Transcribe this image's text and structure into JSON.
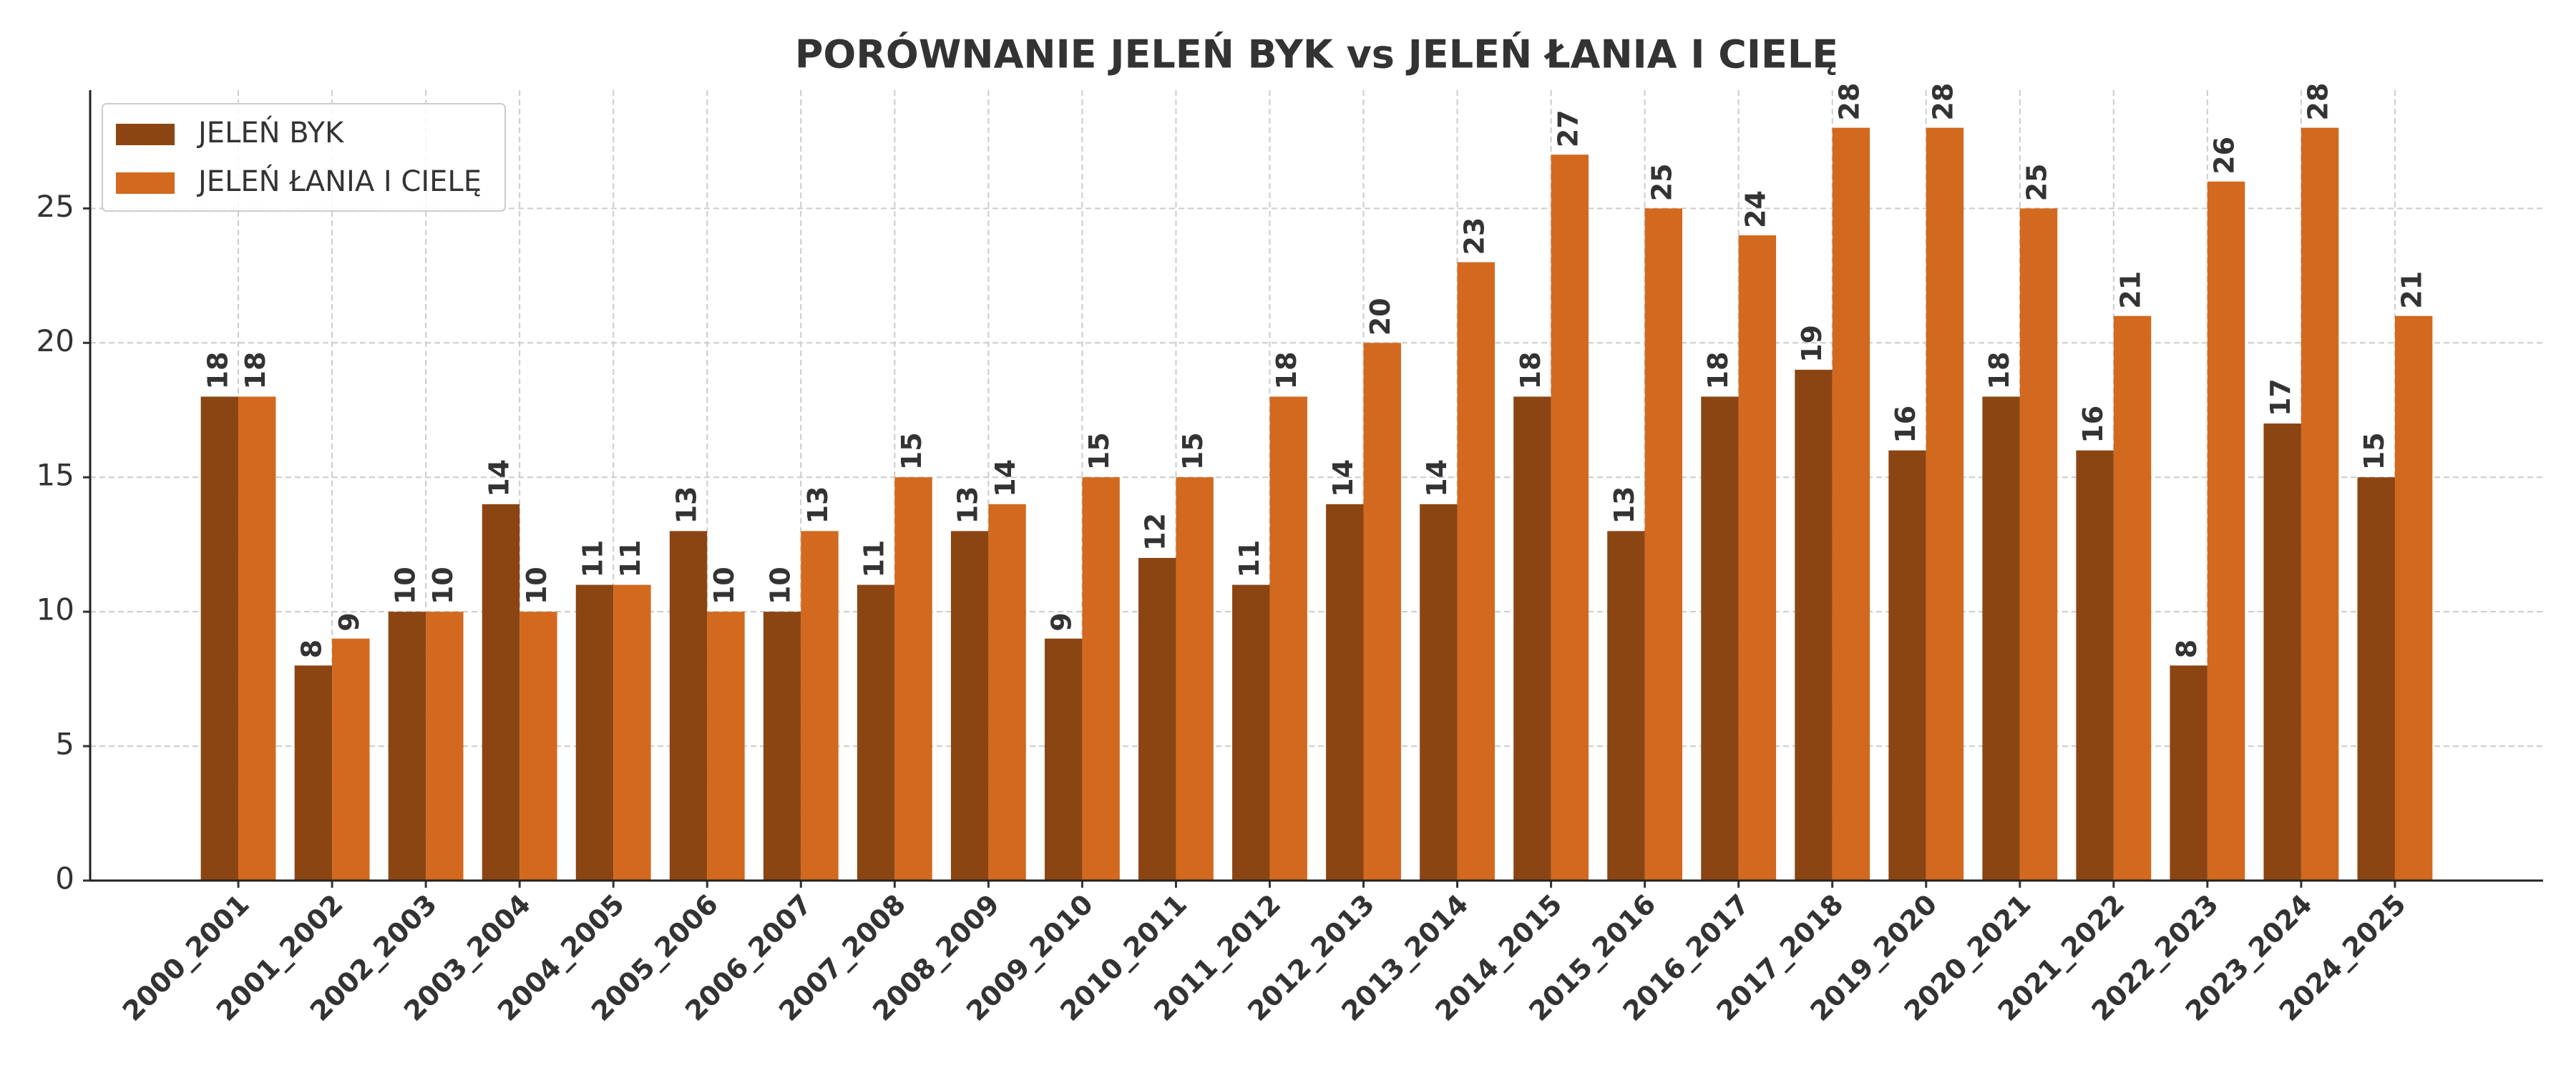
{
  "chart_data": {
    "type": "bar",
    "title": "PORÓWNANIE JELEŃ BYK vs JELEŃ ŁANIA I CIELĘ",
    "categories": [
      "2000_2001",
      "2001_2002",
      "2002_2003",
      "2003_2004",
      "2004_2005",
      "2005_2006",
      "2006_2007",
      "2007_2008",
      "2008_2009",
      "2009_2010",
      "2010_2011",
      "2011_2012",
      "2012_2013",
      "2013_2014",
      "2014_2015",
      "2015_2016",
      "2016_2017",
      "2017_2018",
      "2019_2020",
      "2020_2021",
      "2021_2022",
      "2022_2023",
      "2023_2024",
      "2024_2025"
    ],
    "series": [
      {
        "name": "JELEŃ BYK",
        "color": "#8b4513",
        "values": [
          18,
          8,
          10,
          14,
          11,
          13,
          10,
          11,
          13,
          9,
          12,
          11,
          14,
          14,
          18,
          13,
          18,
          19,
          16,
          18,
          16,
          8,
          17,
          15
        ]
      },
      {
        "name": "JELEŃ ŁANIA I CIELĘ",
        "color": "#d2691e",
        "values": [
          18,
          9,
          10,
          10,
          11,
          10,
          13,
          15,
          14,
          15,
          15,
          18,
          20,
          23,
          27,
          25,
          24,
          28,
          28,
          25,
          21,
          26,
          28,
          21
        ]
      }
    ],
    "ylim": [
      0,
      29.4
    ],
    "yticks": [
      0,
      5,
      10,
      15,
      20,
      25
    ],
    "grid": true,
    "legend": "upper left"
  }
}
